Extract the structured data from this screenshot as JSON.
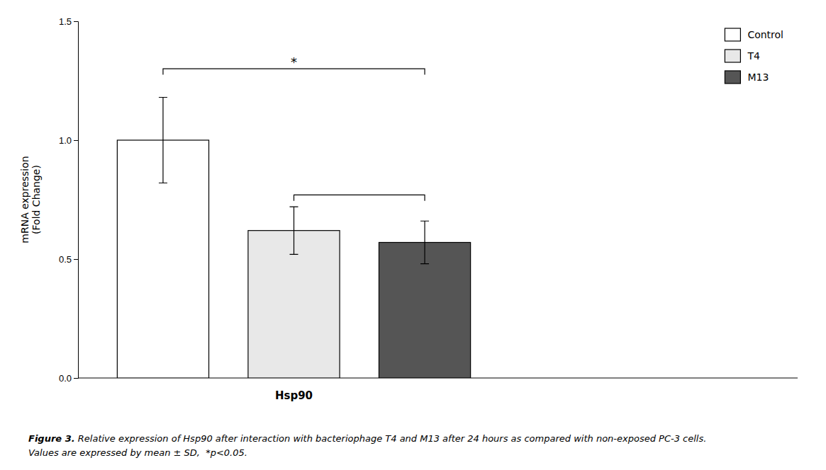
{
  "chart_data": {
    "type": "bar",
    "categories": [
      "Control",
      "T4",
      "M13"
    ],
    "values": [
      1.0,
      0.62,
      0.57
    ],
    "errors": [
      0.18,
      0.1,
      0.09
    ],
    "colors": [
      "#ffffff",
      "#e8e8e8",
      "#555555"
    ],
    "ylabel": "mRNA expression\n(Fold Change)",
    "xlabel": "Hsp90",
    "ylim": [
      0.0,
      1.5
    ],
    "yticks": [
      {
        "value": 0.0,
        "label": "0.0"
      },
      {
        "value": 0.5,
        "label": "0.5"
      },
      {
        "value": 1.0,
        "label": "1.0"
      },
      {
        "value": 1.5,
        "label": "1.5"
      }
    ],
    "tick_labels": "y",
    "legend": "upper right",
    "brackets": [
      {
        "from": "Control",
        "to": "M13",
        "y": 1.3,
        "label": "*"
      },
      {
        "from": "T4",
        "to": "M13",
        "y": 0.77
      }
    ],
    "caption_title": "Figure 3.",
    "caption": " Relative expression of Hsp90 after interaction with bacteriophage T4 and M13 after 24 hours as compared with non-exposed PC-3 cells.\nValues are expressed by mean ± SD,  *p<0.05."
  }
}
